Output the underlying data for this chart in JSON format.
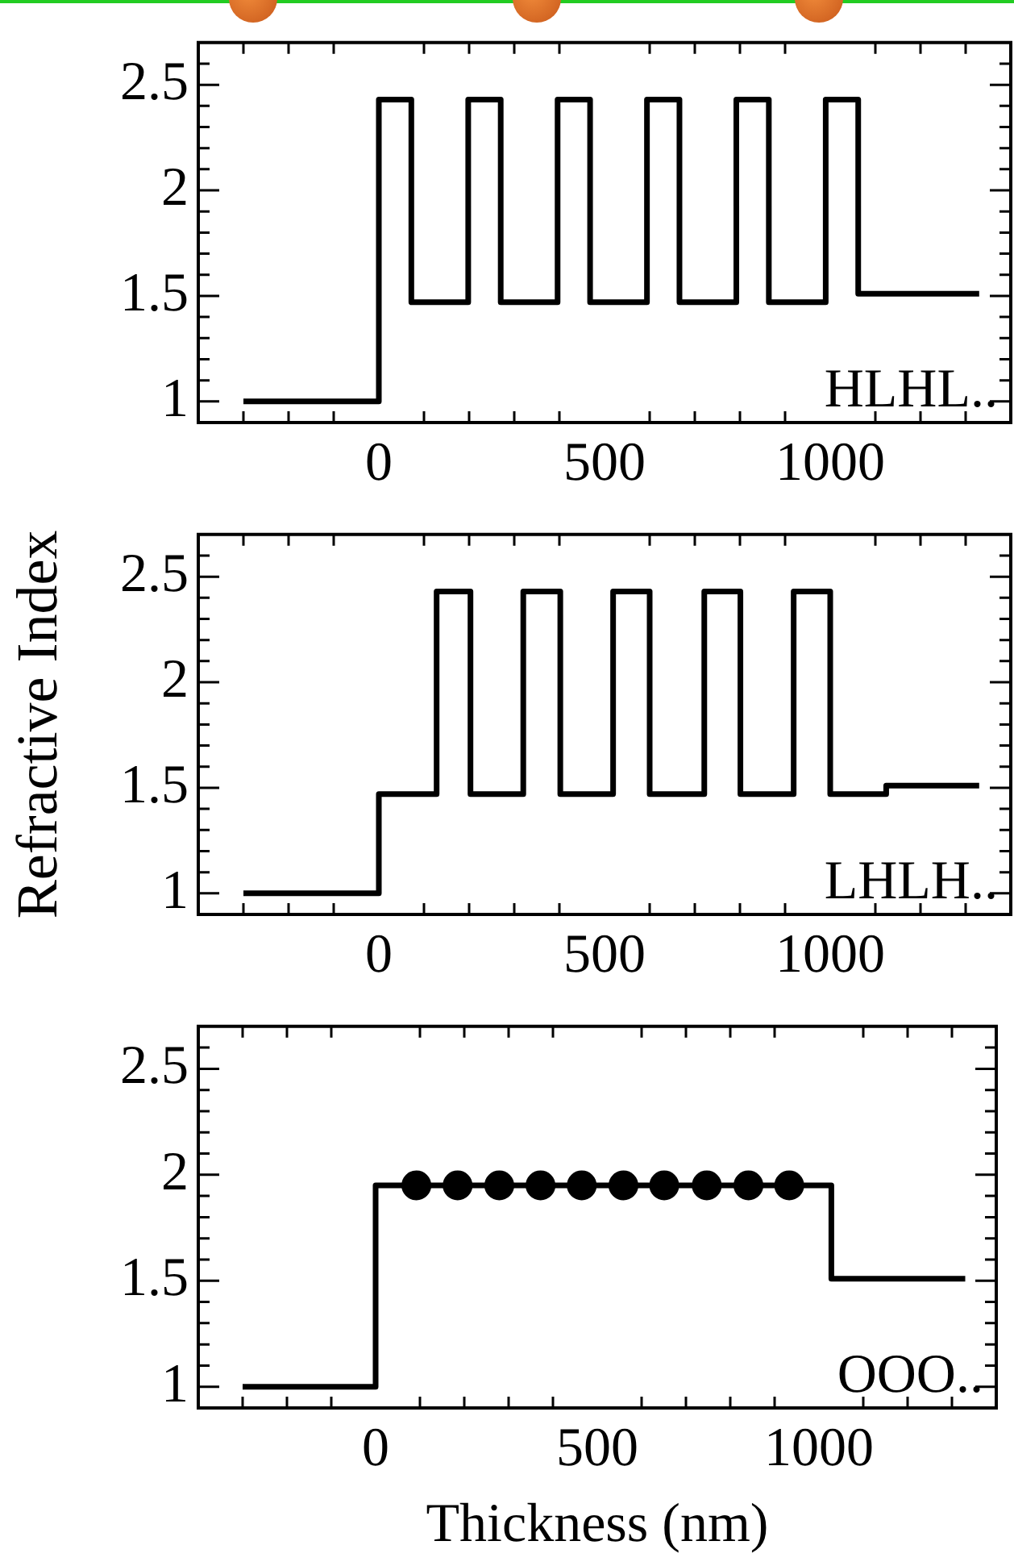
{
  "chart_data": [
    {
      "type": "step",
      "xlim": [
        -400,
        1400
      ],
      "ylim": [
        0.9,
        2.7
      ],
      "xticks": [
        {
          "value": -300,
          "label": null
        },
        {
          "value": -200,
          "label": null
        },
        {
          "value": -100,
          "label": null
        },
        0,
        {
          "value": 100,
          "label": null
        },
        {
          "value": 200,
          "label": null
        },
        {
          "value": 300,
          "label": null
        },
        {
          "value": 400,
          "label": null
        },
        500,
        {
          "value": 600,
          "label": null
        },
        {
          "value": 700,
          "label": null
        },
        {
          "value": 800,
          "label": null
        },
        {
          "value": 900,
          "label": null
        },
        1000,
        {
          "value": 1100,
          "label": null
        },
        {
          "value": 1200,
          "label": null
        },
        {
          "value": 1300,
          "label": null
        }
      ],
      "yticks": [
        1,
        {
          "value": 1.1,
          "label": null
        },
        {
          "value": 1.2,
          "label": null
        },
        {
          "value": 1.3,
          "label": null
        },
        {
          "value": 1.4,
          "label": null
        },
        1.5,
        {
          "value": 1.6,
          "label": null
        },
        {
          "value": 1.7,
          "label": null
        },
        {
          "value": 1.8,
          "label": null
        },
        {
          "value": 1.9,
          "label": null
        },
        2,
        {
          "value": 2.1,
          "label": null
        },
        {
          "value": 2.2,
          "label": null
        },
        {
          "value": 2.3,
          "label": null
        },
        {
          "value": 2.4,
          "label": null
        },
        2.5,
        {
          "value": 2.6,
          "label": null
        }
      ],
      "series": [
        {
          "color": "#000000",
          "x": [
            -300,
            0,
            72,
            198,
            270,
            396,
            468,
            594,
            666,
            792,
            864,
            990,
            1062,
            1330
          ],
          "values": [
            1,
            2.43,
            1.47,
            2.43,
            1.47,
            2.43,
            1.47,
            2.43,
            1.47,
            2.43,
            1.47,
            2.43,
            1.51,
            1.51
          ]
        }
      ],
      "annotations": [
        "HLHL.."
      ]
    },
    {
      "type": "step",
      "xlim": [
        -400,
        1400
      ],
      "ylim": [
        0.9,
        2.7
      ],
      "ylabel": "Refractive Index",
      "xticks": [
        {
          "value": -300,
          "label": null
        },
        {
          "value": -200,
          "label": null
        },
        {
          "value": -100,
          "label": null
        },
        0,
        {
          "value": 100,
          "label": null
        },
        {
          "value": 200,
          "label": null
        },
        {
          "value": 300,
          "label": null
        },
        {
          "value": 400,
          "label": null
        },
        500,
        {
          "value": 600,
          "label": null
        },
        {
          "value": 700,
          "label": null
        },
        {
          "value": 800,
          "label": null
        },
        {
          "value": 900,
          "label": null
        },
        1000,
        {
          "value": 1100,
          "label": null
        },
        {
          "value": 1200,
          "label": null
        },
        {
          "value": 1300,
          "label": null
        }
      ],
      "yticks": [
        1,
        {
          "value": 1.1,
          "label": null
        },
        {
          "value": 1.2,
          "label": null
        },
        {
          "value": 1.3,
          "label": null
        },
        {
          "value": 1.4,
          "label": null
        },
        1.5,
        {
          "value": 1.6,
          "label": null
        },
        {
          "value": 1.7,
          "label": null
        },
        {
          "value": 1.8,
          "label": null
        },
        {
          "value": 1.9,
          "label": null
        },
        2,
        {
          "value": 2.1,
          "label": null
        },
        {
          "value": 2.2,
          "label": null
        },
        {
          "value": 2.3,
          "label": null
        },
        {
          "value": 2.4,
          "label": null
        },
        2.5,
        {
          "value": 2.6,
          "label": null
        }
      ],
      "series": [
        {
          "color": "#000000",
          "x": [
            -300,
            0,
            128,
            203,
            320,
            402,
            519,
            600,
            721,
            801,
            919,
            1000,
            1124,
            1330
          ],
          "values": [
            1,
            1.47,
            2.43,
            1.47,
            2.43,
            1.47,
            2.43,
            1.47,
            2.43,
            1.47,
            2.43,
            1.47,
            1.51,
            1.51
          ]
        }
      ],
      "annotations": [
        "LHLH.."
      ]
    },
    {
      "type": "step",
      "xlim": [
        -400,
        1400
      ],
      "ylim": [
        0.9,
        2.7
      ],
      "xlabel": "Thickness (nm)",
      "xticks": [
        {
          "value": -300,
          "label": null
        },
        {
          "value": -200,
          "label": null
        },
        {
          "value": -100,
          "label": null
        },
        0,
        {
          "value": 100,
          "label": null
        },
        {
          "value": 200,
          "label": null
        },
        {
          "value": 300,
          "label": null
        },
        {
          "value": 400,
          "label": null
        },
        500,
        {
          "value": 600,
          "label": null
        },
        {
          "value": 700,
          "label": null
        },
        {
          "value": 800,
          "label": null
        },
        {
          "value": 900,
          "label": null
        },
        1000,
        {
          "value": 1100,
          "label": null
        },
        {
          "value": 1200,
          "label": null
        },
        {
          "value": 1300,
          "label": null
        }
      ],
      "yticks": [
        1,
        {
          "value": 1.1,
          "label": null
        },
        {
          "value": 1.2,
          "label": null
        },
        {
          "value": 1.3,
          "label": null
        },
        {
          "value": 1.4,
          "label": null
        },
        1.5,
        {
          "value": 1.6,
          "label": null
        },
        {
          "value": 1.7,
          "label": null
        },
        {
          "value": 1.8,
          "label": null
        },
        {
          "value": 1.9,
          "label": null
        },
        2,
        {
          "value": 2.1,
          "label": null
        },
        {
          "value": 2.2,
          "label": null
        },
        {
          "value": 2.3,
          "label": null
        },
        {
          "value": 2.4,
          "label": null
        },
        2.5,
        {
          "value": 2.6,
          "label": null
        }
      ],
      "series": [
        {
          "color": "#000000",
          "x": [
            -300,
            0,
            1028,
            1330
          ],
          "values": [
            1,
            1.95,
            1.51,
            1.51
          ]
        },
        {
          "type": "scatter",
          "marker": "circle",
          "color": "#000000",
          "x": [
            92,
            185,
            279,
            372,
            465,
            559,
            651,
            747,
            841,
            933
          ],
          "values": [
            1.95,
            1.95,
            1.95,
            1.95,
            1.95,
            1.95,
            1.95,
            1.95,
            1.95,
            1.95
          ]
        }
      ],
      "annotations": [
        "OOO.."
      ]
    }
  ]
}
